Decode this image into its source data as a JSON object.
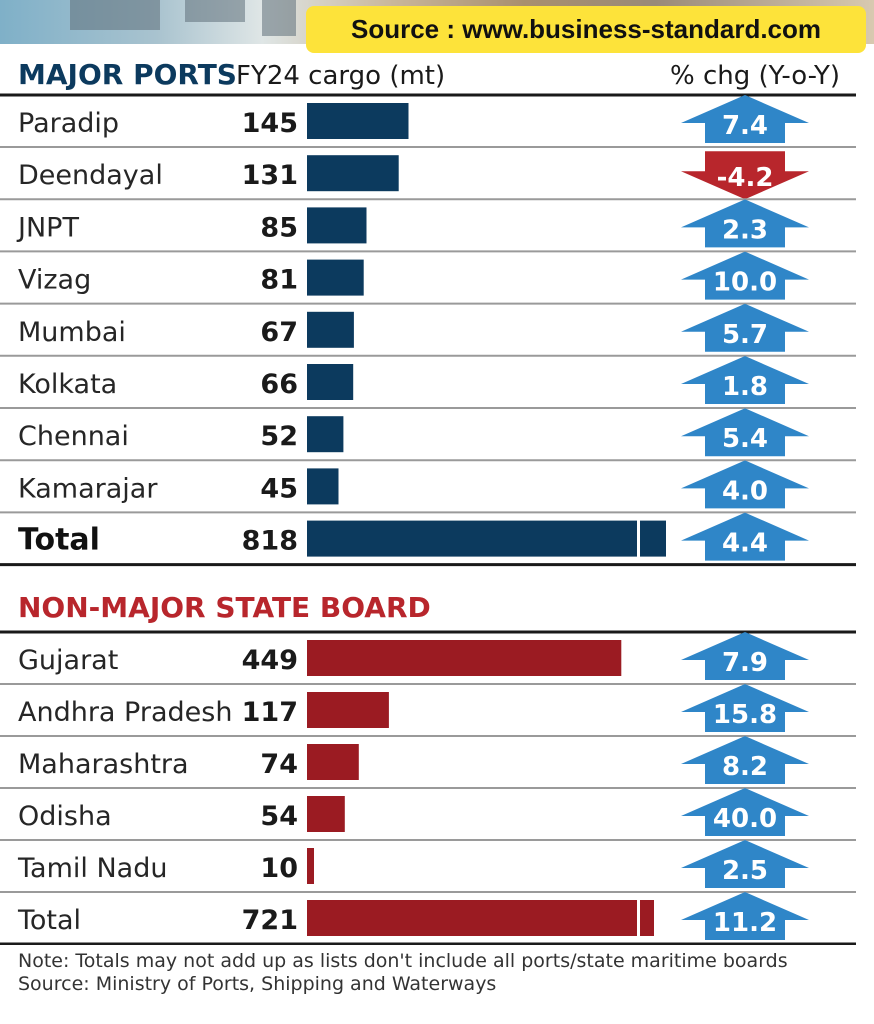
{
  "source_banner": "Source : www.business-standard.com",
  "colors": {
    "major_bar": "#0c3a5e",
    "non_major_bar": "#9b1b22",
    "up_arrow": "#2f86c8",
    "down_arrow": "#b8262c",
    "major_title": "#0c3a5e",
    "non_major_title": "#b8262c"
  },
  "chart_data": {
    "type": "bar",
    "orientation": "horizontal",
    "columns": {
      "cargo_header": "FY24 cargo (mt)",
      "change_header": "% chg (Y-o-Y)"
    },
    "groups": [
      {
        "name": "MAJOR PORTS",
        "rows": [
          {
            "label": "Paradip",
            "cargo": 145,
            "chg": 7.4,
            "chg_label": "7.4"
          },
          {
            "label": "Deendayal",
            "cargo": 131,
            "chg": -4.2,
            "chg_label": "-4.2"
          },
          {
            "label": "JNPT",
            "cargo": 85,
            "chg": 2.3,
            "chg_label": "2.3"
          },
          {
            "label": "Vizag",
            "cargo": 81,
            "chg": 10.0,
            "chg_label": "10.0"
          },
          {
            "label": "Mumbai",
            "cargo": 67,
            "chg": 5.7,
            "chg_label": "5.7"
          },
          {
            "label": "Kolkata",
            "cargo": 66,
            "chg": 1.8,
            "chg_label": "1.8"
          },
          {
            "label": "Chennai",
            "cargo": 52,
            "chg": 5.4,
            "chg_label": "5.4"
          },
          {
            "label": "Kamarajar",
            "cargo": 45,
            "chg": 4.0,
            "chg_label": "4.0"
          }
        ],
        "total": {
          "label": "Total",
          "cargo": 818,
          "chg": 4.4,
          "chg_label": "4.4"
        }
      },
      {
        "name": "NON-MAJOR STATE BOARD",
        "rows": [
          {
            "label": "Gujarat",
            "cargo": 449,
            "chg": 7.9,
            "chg_label": "7.9"
          },
          {
            "label": "Andhra Pradesh",
            "cargo": 117,
            "chg": 15.8,
            "chg_label": "15.8"
          },
          {
            "label": "Maharashtra",
            "cargo": 74,
            "chg": 8.2,
            "chg_label": "8.2"
          },
          {
            "label": "Odisha",
            "cargo": 54,
            "chg": 40.0,
            "chg_label": "40.0"
          },
          {
            "label": "Tamil Nadu",
            "cargo": 10,
            "chg": 2.5,
            "chg_label": "2.5"
          }
        ],
        "total": {
          "label": "Total",
          "cargo": 721,
          "chg": 11.2,
          "chg_label": "11.2"
        }
      }
    ]
  },
  "note": {
    "line1": "Note: Totals may not add up as lists don't include all ports/state maritime boards",
    "line2": "Source: Ministry of Ports, Shipping and Waterways"
  }
}
